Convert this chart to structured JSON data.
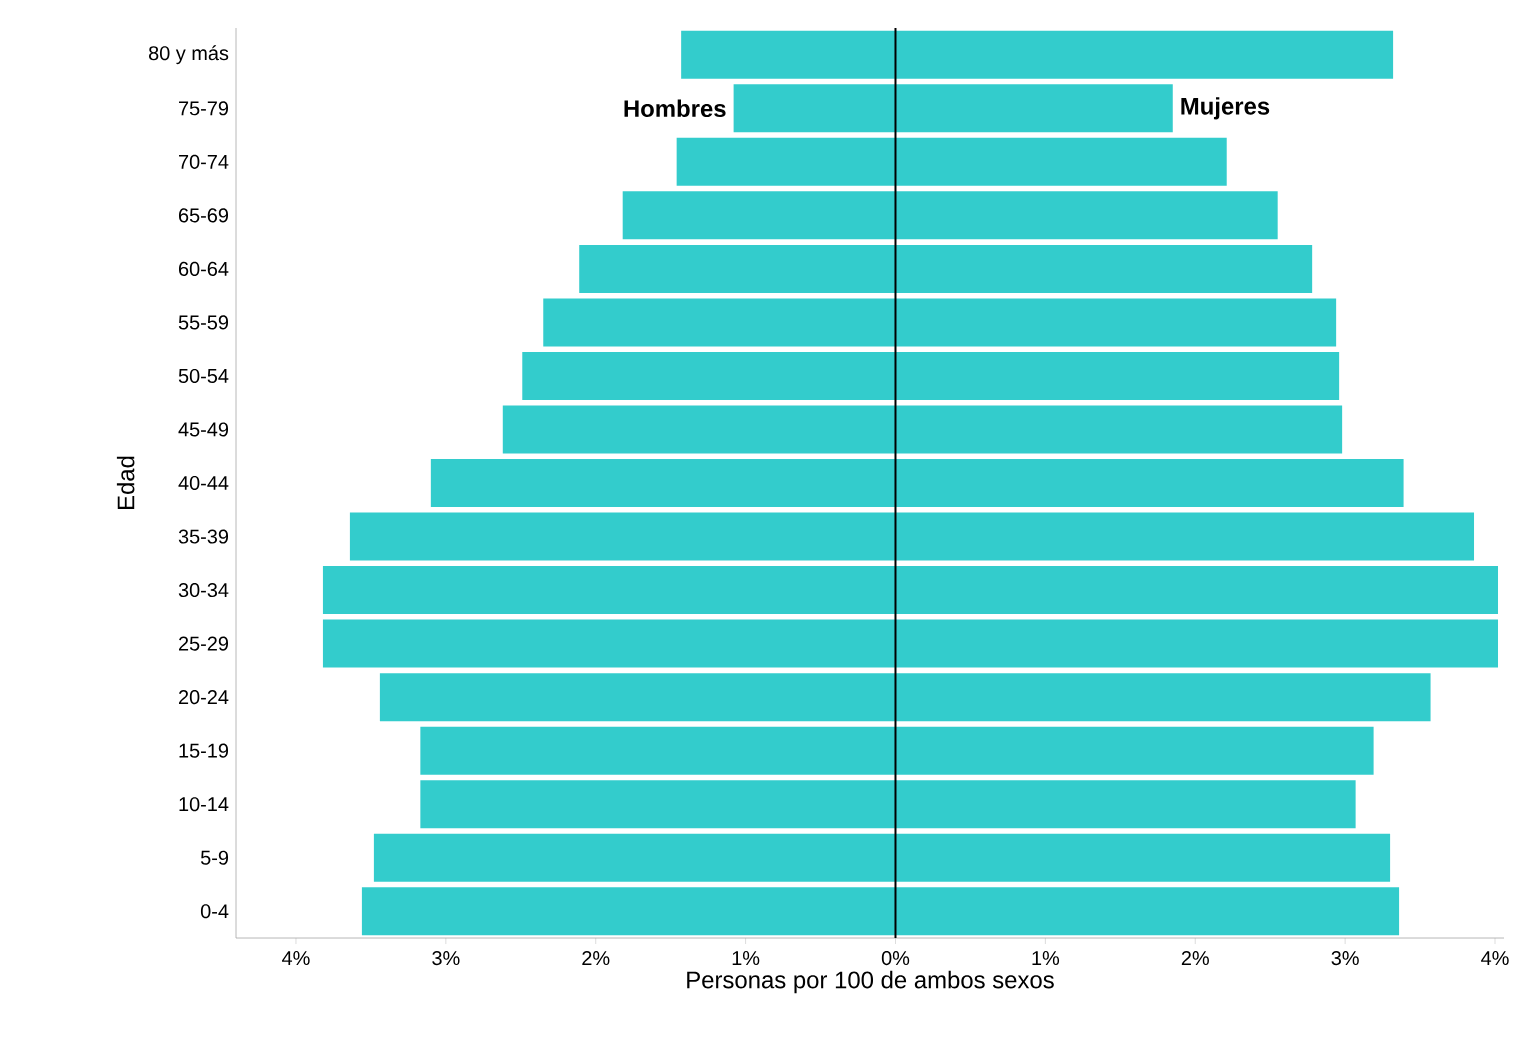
{
  "chart_data": {
    "type": "bar",
    "orientation": "horizontal",
    "xlabel": "Personas por 100 de ambos sexos",
    "ylabel": "Edad",
    "categories": [
      "80 y más",
      "75-79",
      "70-74",
      "65-69",
      "60-64",
      "55-59",
      "50-54",
      "45-49",
      "40-44",
      "35-39",
      "30-34",
      "25-29",
      "20-24",
      "15-19",
      "10-14",
      "5-9",
      "0-4"
    ],
    "series": [
      {
        "name": "Hombres",
        "color": "#33cccc",
        "values": [
          -1.43,
          -1.08,
          -1.46,
          -1.82,
          -2.11,
          -2.35,
          -2.49,
          -2.62,
          -3.1,
          -3.64,
          -3.82,
          -3.82,
          -3.44,
          -3.17,
          -3.17,
          -3.48,
          -3.56
        ]
      },
      {
        "name": "Mujeres",
        "color": "#33cccc",
        "values": [
          3.32,
          1.85,
          2.21,
          2.55,
          2.78,
          2.94,
          2.96,
          2.98,
          3.39,
          3.86,
          4.02,
          4.02,
          3.57,
          3.19,
          3.07,
          3.3,
          3.36
        ]
      }
    ],
    "xlim": [
      -4.4,
      4.06
    ],
    "xticks": [
      {
        "value": -4,
        "label": "4%"
      },
      {
        "value": -3,
        "label": "3%"
      },
      {
        "value": -2,
        "label": "2%"
      },
      {
        "value": -1,
        "label": "1%"
      },
      {
        "value": 0,
        "label": "0%"
      },
      {
        "value": 1,
        "label": "1%"
      },
      {
        "value": 2,
        "label": "2%"
      },
      {
        "value": 3,
        "label": "3%"
      },
      {
        "value": 4,
        "label": "4%"
      }
    ],
    "ref_lines": [
      {
        "axis": "x",
        "value": 0,
        "color": "#000000"
      }
    ],
    "stacked": true
  }
}
